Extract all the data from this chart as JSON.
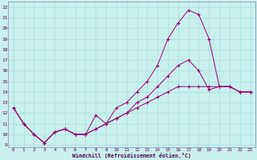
{
  "xlabel": "Windchill (Refroidissement éolien,°C)",
  "bg_color": "#c8f0ec",
  "line_color": "#990077",
  "grid_color": "#aadddd",
  "xlim": [
    -0.5,
    23.5
  ],
  "ylim": [
    8.8,
    22.5
  ],
  "xticks": [
    0,
    1,
    2,
    3,
    4,
    5,
    6,
    7,
    8,
    9,
    10,
    11,
    12,
    13,
    14,
    15,
    16,
    17,
    18,
    19,
    20,
    21,
    22,
    23
  ],
  "yticks": [
    9,
    10,
    11,
    12,
    13,
    14,
    15,
    16,
    17,
    18,
    19,
    20,
    21,
    22
  ],
  "line1_x": [
    0,
    1,
    2,
    3,
    4,
    5,
    6,
    7,
    8,
    9,
    10,
    11,
    12,
    13,
    14,
    15,
    16,
    17,
    18,
    19,
    20,
    21,
    22,
    23
  ],
  "line1_y": [
    12.5,
    11.0,
    10.0,
    9.2,
    10.2,
    10.5,
    10.0,
    10.0,
    10.5,
    11.0,
    11.5,
    12.0,
    13.0,
    13.5,
    14.5,
    15.5,
    16.5,
    17.0,
    16.0,
    14.2,
    14.5,
    14.5,
    14.0,
    14.0
  ],
  "line2_x": [
    0,
    1,
    2,
    3,
    4,
    5,
    6,
    7,
    8,
    9,
    10,
    11,
    12,
    13,
    14,
    15,
    16,
    17,
    18,
    19,
    20,
    21,
    22,
    23
  ],
  "line2_y": [
    12.5,
    11.0,
    10.0,
    9.2,
    10.2,
    10.5,
    10.0,
    10.0,
    11.8,
    11.0,
    12.5,
    13.0,
    14.0,
    15.0,
    16.5,
    19.0,
    20.5,
    21.7,
    21.3,
    19.0,
    14.5,
    14.5,
    14.0,
    14.0
  ],
  "line3_x": [
    0,
    1,
    2,
    3,
    4,
    5,
    6,
    7,
    8,
    9,
    10,
    11,
    12,
    13,
    14,
    15,
    16,
    17,
    18,
    19,
    20,
    21,
    22,
    23
  ],
  "line3_y": [
    12.5,
    11.0,
    10.0,
    9.2,
    10.2,
    10.5,
    10.0,
    10.0,
    10.5,
    11.0,
    11.5,
    12.0,
    12.5,
    13.0,
    13.5,
    14.0,
    14.5,
    14.5,
    14.5,
    14.5,
    14.5,
    14.5,
    14.0,
    14.0
  ]
}
